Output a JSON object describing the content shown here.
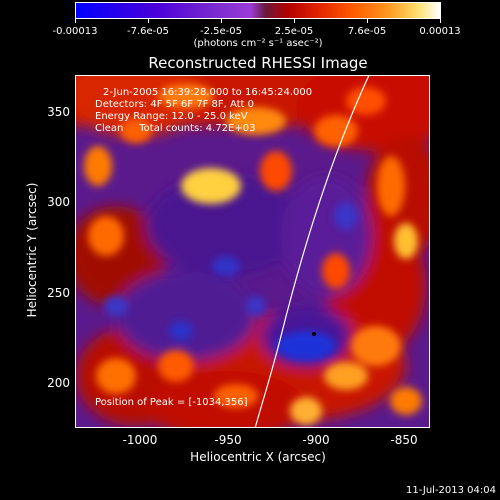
{
  "colorbar": {
    "tick_labels": [
      "-0.00013",
      "-7.6e-05",
      "-2.5e-05",
      "2.5e-05",
      "7.6e-05",
      "0.00013"
    ],
    "unit_label": "(photons cm⁻² s⁻¹ asec⁻²)"
  },
  "image": {
    "title": "Reconstructed RHESSI Image",
    "info_lines": [
      "2-Jun-2005 16:39:28.000 to 16:45:24.000",
      "Detectors: 4F 5F 6F 7F 8F, Att 0",
      "Energy Range: 12.0 - 25.0 keV",
      "Clean     Total counts: 4.72E+03"
    ],
    "peak_label": "Position of Peak = [-1034,356]",
    "xlabel": "Heliocentric X (arcsec)",
    "ylabel": "Heliocentric Y (arcsec)",
    "x_ticks": [
      "-1000",
      "-950",
      "-900",
      "-850"
    ],
    "y_ticks": [
      "350",
      "300",
      "250",
      "200"
    ],
    "x_range": [
      -1035,
      -835
    ],
    "y_range": [
      175,
      372
    ]
  },
  "datestamp": "11-Jul-2013 04:04"
}
